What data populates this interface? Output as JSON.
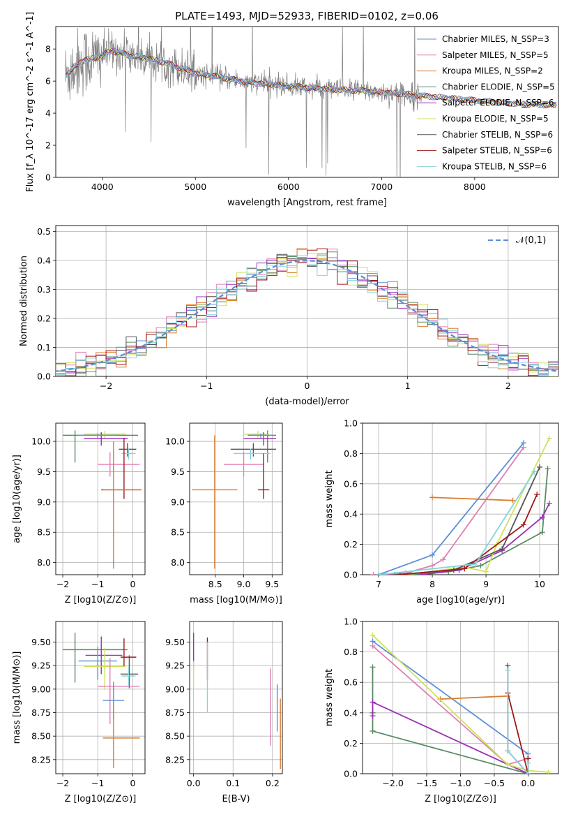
{
  "figure_title": "PLATE=1493, MJD=52933, FIBERID=0102, z=0.06",
  "series_colors": {
    "chabrier_miles": "#5b8fd6",
    "salpeter_miles": "#e07fb5",
    "kroupa_miles": "#dd7d2e",
    "chabrier_elodie": "#5a8a64",
    "salpeter_elodie": "#9a30b8",
    "kroupa_elodie": "#cfe25b",
    "chabrier_stelib": "#555555",
    "salpeter_stelib": "#a01818",
    "kroupa_stelib": "#86d4dc",
    "data": "#808080"
  },
  "chart_data": [
    {
      "id": "spectrum",
      "type": "line",
      "xlabel": "wavelength [Angstrom, rest frame]",
      "ylabel": "Flux [f_λ 10^-17 erg cm^-2 s^-1 A^-1]",
      "xlim": [
        3500,
        8900
      ],
      "ylim": [
        0,
        9.4
      ],
      "xticks": [
        4000,
        5000,
        6000,
        7000,
        8000
      ],
      "yticks": [
        0,
        2,
        4,
        6,
        8
      ],
      "continuum": {
        "x": [
          3600,
          3700,
          3800,
          3900,
          4000,
          4100,
          4300,
          4500,
          4700,
          4850,
          5000,
          5300,
          5600,
          6000,
          6400,
          6800,
          7200,
          7600,
          8000,
          8400,
          8800
        ],
        "y": [
          6.3,
          6.9,
          7.3,
          7.4,
          7.6,
          7.9,
          7.6,
          7.4,
          7.1,
          6.8,
          6.5,
          6.2,
          5.9,
          5.7,
          5.5,
          5.4,
          5.2,
          5.0,
          4.8,
          4.6,
          4.5
        ]
      },
      "legend": [
        {
          "label": "Chabrier MILES, N_SSP=3",
          "color_key": "chabrier_miles"
        },
        {
          "label": "Salpeter MILES, N_SSP=5",
          "color_key": "salpeter_miles"
        },
        {
          "label": "Kroupa MILES, N_SSP=2",
          "color_key": "kroupa_miles"
        },
        {
          "label": "Chabrier ELODIE, N_SSP=5",
          "color_key": "chabrier_elodie"
        },
        {
          "label": "Salpeter ELODIE, N_SSP=6",
          "color_key": "salpeter_elodie"
        },
        {
          "label": "Kroupa ELODIE, N_SSP=5",
          "color_key": "kroupa_elodie"
        },
        {
          "label": "Chabrier STELIB, N_SSP=6",
          "color_key": "chabrier_stelib"
        },
        {
          "label": "Salpeter STELIB, N_SSP=6",
          "color_key": "salpeter_stelib"
        },
        {
          "label": "Kroupa STELIB, N_SSP=6",
          "color_key": "kroupa_stelib"
        }
      ],
      "legend_placement": "upper right",
      "grid": false
    },
    {
      "id": "residuals",
      "type": "line",
      "xlabel": "(data-model)/error",
      "ylabel": "Normed distribution",
      "xlim": [
        -2.5,
        2.5
      ],
      "ylim": [
        0,
        0.52
      ],
      "xticks": [
        -2,
        -1,
        0,
        1,
        2
      ],
      "yticks": [
        0.0,
        0.1,
        0.2,
        0.3,
        0.4,
        0.5
      ],
      "reference_label": "𝒩(0,1)",
      "reference_color": "#5b8fd6",
      "legend_placement": "upper right",
      "grid": true
    },
    {
      "id": "age_vs_z",
      "type": "scatter",
      "xlabel": "Z [log10(Z/Z⊙)]",
      "ylabel": "age  [log10(age/yr)]",
      "xlim": [
        -2.2,
        0.35
      ],
      "ylim": [
        7.8,
        10.3
      ],
      "xticks": [
        -2,
        -1,
        0
      ],
      "yticks": [
        8.0,
        8.5,
        9.0,
        9.5,
        10.0
      ],
      "grid": true,
      "series": [
        {
          "color_key": "chabrier_elodie",
          "x": -1.65,
          "y": 10.1,
          "xerr": [
            0.35,
            1.8
          ],
          "yerr": [
            0.45,
            0.08
          ]
        },
        {
          "color_key": "kroupa_elodie",
          "x": -0.8,
          "y": 10.12,
          "xerr": [
            0.6,
            0.6
          ],
          "yerr": [
            0.08,
            0.05
          ]
        },
        {
          "color_key": "salpeter_elodie",
          "x": -0.9,
          "y": 10.05,
          "xerr": [
            0.5,
            0.75
          ],
          "yerr": [
            0.12,
            0.1
          ]
        },
        {
          "color_key": "chabrier_miles",
          "x": -1.0,
          "y": 10.1,
          "xerr": [
            0.6,
            0.55
          ],
          "yerr": [
            0.05,
            0.03
          ]
        },
        {
          "color_key": "chabrier_stelib",
          "x": -0.15,
          "y": 9.87,
          "xerr": [
            0.25,
            0.25
          ],
          "yerr": [
            0.12,
            0.1
          ]
        },
        {
          "color_key": "kroupa_stelib",
          "x": -0.12,
          "y": 9.8,
          "xerr": [
            0.2,
            0.2
          ],
          "yerr": [
            0.1,
            0.08
          ]
        },
        {
          "color_key": "salpeter_miles",
          "x": -0.65,
          "y": 9.62,
          "xerr": [
            0.35,
            0.85
          ],
          "yerr": [
            0.2,
            0.2
          ]
        },
        {
          "color_key": "salpeter_stelib",
          "x": -0.25,
          "y": 9.2,
          "xerr": [
            0.65,
            0.5
          ],
          "yerr": [
            0.15,
            0.85
          ]
        },
        {
          "color_key": "kroupa_miles",
          "x": -0.55,
          "y": 9.2,
          "xerr": [
            0.3,
            0.8
          ],
          "yerr": [
            1.3,
            0.8
          ]
        }
      ]
    },
    {
      "id": "age_vs_mass",
      "type": "scatter",
      "xlabel": "mass [log10(M/M⊙)]",
      "xlim": [
        8.05,
        9.68
      ],
      "ylim": [
        7.8,
        10.3
      ],
      "xticks": [
        8.5,
        9.0,
        9.5
      ],
      "yticks": [
        8.0,
        8.5,
        9.0,
        9.5,
        10.0
      ],
      "grid": true,
      "series": [
        {
          "color_key": "chabrier_elodie",
          "x": 9.42,
          "y": 10.1,
          "xerr": [
            0.35,
            0.15
          ],
          "yerr": [
            0.45,
            0.08
          ]
        },
        {
          "color_key": "kroupa_elodie",
          "x": 9.25,
          "y": 10.12,
          "xerr": [
            0.25,
            0.2
          ],
          "yerr": [
            0.08,
            0.05
          ]
        },
        {
          "color_key": "salpeter_elodie",
          "x": 9.35,
          "y": 10.05,
          "xerr": [
            0.35,
            0.22
          ],
          "yerr": [
            0.12,
            0.1
          ]
        },
        {
          "color_key": "chabrier_miles",
          "x": 9.3,
          "y": 10.1,
          "xerr": [
            0.2,
            0.2
          ],
          "yerr": [
            0.05,
            0.03
          ]
        },
        {
          "color_key": "chabrier_stelib",
          "x": 9.17,
          "y": 9.87,
          "xerr": [
            0.4,
            0.4
          ],
          "yerr": [
            0.12,
            0.1
          ]
        },
        {
          "color_key": "kroupa_stelib",
          "x": 9.12,
          "y": 9.8,
          "xerr": [
            0.3,
            0.35
          ],
          "yerr": [
            0.1,
            0.08
          ]
        },
        {
          "color_key": "salpeter_miles",
          "x": 9.0,
          "y": 9.62,
          "xerr": [
            0.35,
            0.35
          ],
          "yerr": [
            0.2,
            0.2
          ]
        },
        {
          "color_key": "salpeter_stelib",
          "x": 9.35,
          "y": 9.2,
          "xerr": [
            0.1,
            0.1
          ],
          "yerr": [
            0.15,
            0.6
          ]
        },
        {
          "color_key": "kroupa_miles",
          "x": 8.49,
          "y": 9.2,
          "xerr": [
            0.4,
            0.4
          ],
          "yerr": [
            1.3,
            0.9
          ]
        }
      ]
    },
    {
      "id": "weight_vs_age",
      "type": "line",
      "xlabel": "age  [log10(age/yr)]",
      "ylabel": "mass weight",
      "xlim": [
        6.7,
        10.35
      ],
      "ylim": [
        0,
        1.0
      ],
      "xticks": [
        7,
        8,
        9,
        10
      ],
      "yticks": [
        0.0,
        0.2,
        0.4,
        0.6,
        0.8,
        1.0
      ],
      "grid": true,
      "series": [
        {
          "color_key": "chabrier_miles",
          "x": [
            7.0,
            8.0,
            9.7
          ],
          "y": [
            0.0,
            0.13,
            0.87
          ]
        },
        {
          "color_key": "salpeter_miles",
          "x": [
            6.9,
            7.5,
            8.0,
            8.2,
            9.7
          ],
          "y": [
            0.0,
            0.01,
            0.06,
            0.1,
            0.84
          ]
        },
        {
          "color_key": "kroupa_miles",
          "x": [
            8.0,
            9.5
          ],
          "y": [
            0.51,
            0.49
          ]
        },
        {
          "color_key": "chabrier_elodie",
          "x": [
            7.6,
            8.3,
            8.9,
            10.05,
            10.15
          ],
          "y": [
            0.0,
            0.02,
            0.06,
            0.28,
            0.7
          ]
        },
        {
          "color_key": "salpeter_elodie",
          "x": [
            7.8,
            8.5,
            9.3,
            10.05,
            10.18
          ],
          "y": [
            0.0,
            0.03,
            0.16,
            0.38,
            0.47
          ]
        },
        {
          "color_key": "kroupa_elodie",
          "x": [
            7.5,
            8.6,
            9.0,
            9.2,
            10.18
          ],
          "y": [
            0.0,
            0.05,
            0.02,
            0.2,
            0.9
          ]
        },
        {
          "color_key": "chabrier_stelib",
          "x": [
            7.3,
            8.4,
            9.3,
            10.0
          ],
          "y": [
            0.0,
            0.03,
            0.17,
            0.71
          ]
        },
        {
          "color_key": "salpeter_stelib",
          "x": [
            7.4,
            8.6,
            9.7,
            9.95
          ],
          "y": [
            0.0,
            0.04,
            0.33,
            0.53
          ]
        },
        {
          "color_key": "kroupa_stelib",
          "x": [
            7.0,
            8.8,
            9.9
          ],
          "y": [
            0.0,
            0.07,
            0.68
          ]
        }
      ]
    },
    {
      "id": "mass_vs_z",
      "type": "scatter",
      "xlabel": "Z [log10(Z/Z⊙)]",
      "ylabel": "mass [log10(M/M⊙)]",
      "xlim": [
        -2.2,
        0.35
      ],
      "ylim": [
        8.1,
        9.72
      ],
      "xticks": [
        -2,
        -1,
        0
      ],
      "yticks": [
        8.25,
        8.5,
        8.75,
        9.0,
        9.25,
        9.5
      ],
      "grid": true,
      "series": [
        {
          "color_key": "chabrier_elodie",
          "x": -1.65,
          "y": 9.42,
          "xerr": [
            0.35,
            1.5
          ],
          "yerr": [
            0.35,
            0.18
          ]
        },
        {
          "color_key": "salpeter_elodie",
          "x": -0.9,
          "y": 9.36,
          "xerr": [
            0.45,
            0.6
          ],
          "yerr": [
            0.2,
            0.2
          ]
        },
        {
          "color_key": "chabrier_miles",
          "x": -1.0,
          "y": 9.3,
          "xerr": [
            0.55,
            0.55
          ],
          "yerr": [
            0.2,
            0.15
          ]
        },
        {
          "color_key": "salpeter_stelib",
          "x": -0.25,
          "y": 9.34,
          "xerr": [
            0.1,
            0.35
          ],
          "yerr": [
            0.1,
            0.2
          ]
        },
        {
          "color_key": "kroupa_elodie",
          "x": -0.8,
          "y": 9.24,
          "xerr": [
            0.6,
            0.6
          ],
          "yerr": [
            0.25,
            0.2
          ]
        },
        {
          "color_key": "chabrier_stelib",
          "x": -0.1,
          "y": 9.16,
          "xerr": [
            0.25,
            0.25
          ],
          "yerr": [
            0.15,
            0.2
          ]
        },
        {
          "color_key": "kroupa_stelib",
          "x": -0.12,
          "y": 9.14,
          "xerr": [
            0.2,
            0.2
          ],
          "yerr": [
            0.1,
            0.1
          ]
        },
        {
          "color_key": "salpeter_miles",
          "x": -0.65,
          "y": 9.03,
          "xerr": [
            0.35,
            0.85
          ],
          "yerr": [
            0.4,
            0.3
          ]
        },
        {
          "color_key": "chabrier_miles",
          "x": -0.55,
          "y": 8.88,
          "xerr": [
            0.3,
            0.3
          ],
          "yerr": [
            0.2,
            0.2
          ]
        },
        {
          "color_key": "kroupa_miles",
          "x": -0.55,
          "y": 8.48,
          "xerr": [
            0.3,
            0.75
          ],
          "yerr": [
            0.32,
            0.4
          ]
        }
      ]
    },
    {
      "id": "mass_vs_ebv",
      "type": "scatter",
      "xlabel": "E(B-V)",
      "xlim": [
        -0.01,
        0.225
      ],
      "ylim": [
        8.1,
        9.72
      ],
      "xticks": [
        0.0,
        0.1,
        0.2
      ],
      "yticks": [
        8.25,
        8.5,
        8.75,
        9.0,
        9.25,
        9.5
      ],
      "grid": true,
      "series": [
        {
          "color_key": "salpeter_elodie",
          "x": 0.0,
          "y": 9.4,
          "yerr": [
            0.2,
            0.2
          ]
        },
        {
          "color_key": "kroupa_elodie",
          "x": 0.0,
          "y": 9.2,
          "yerr": [
            0.2,
            0.1
          ]
        },
        {
          "color_key": "salpeter_stelib",
          "x": 0.035,
          "y": 9.3,
          "yerr": [
            0.2,
            0.25
          ]
        },
        {
          "color_key": "kroupa_stelib",
          "x": 0.035,
          "y": 9.1,
          "yerr": [
            0.35,
            0.4
          ]
        },
        {
          "color_key": "salpeter_miles",
          "x": 0.195,
          "y": 8.8,
          "yerr": [
            0.4,
            0.42
          ]
        },
        {
          "color_key": "chabrier_miles",
          "x": 0.212,
          "y": 8.75,
          "yerr": [
            0.2,
            0.3
          ]
        },
        {
          "color_key": "kroupa_miles",
          "x": 0.22,
          "y": 8.5,
          "yerr": [
            0.35,
            0.4
          ]
        }
      ]
    },
    {
      "id": "weight_vs_z",
      "type": "line",
      "xlabel": "Z [log10(Z/Z⊙)]",
      "ylabel": "mass weight",
      "xlim": [
        -2.45,
        0.45
      ],
      "ylim": [
        0,
        1.0
      ],
      "xticks": [
        -2.0,
        -1.5,
        -1.0,
        -0.5,
        0.0
      ],
      "yticks": [
        0.0,
        0.2,
        0.4,
        0.6,
        0.8,
        1.0
      ],
      "grid": true,
      "series": [
        {
          "color_key": "chabrier_miles",
          "x": [
            -2.3,
            0.0
          ],
          "y": [
            0.87,
            0.13
          ]
        },
        {
          "color_key": "salpeter_miles",
          "x": [
            -2.3,
            -0.3,
            0.0
          ],
          "y": [
            0.84,
            0.06,
            0.1
          ]
        },
        {
          "color_key": "kroupa_miles",
          "x": [
            -1.3,
            -0.3
          ],
          "y": [
            0.49,
            0.51
          ]
        },
        {
          "color_key": "chabrier_elodie",
          "x": [
            -2.3,
            -2.3,
            -2.3,
            0.0,
            0.0
          ],
          "y": [
            0.7,
            0.4,
            0.28,
            0.0,
            0.02
          ]
        },
        {
          "color_key": "salpeter_elodie",
          "x": [
            -2.3,
            -2.3,
            0.0,
            0.0
          ],
          "y": [
            0.38,
            0.47,
            0.0,
            0.1
          ]
        },
        {
          "color_key": "kroupa_elodie",
          "x": [
            -2.3,
            -0.3,
            0.0,
            0.3
          ],
          "y": [
            0.91,
            0.06,
            0.02,
            0.01
          ]
        },
        {
          "color_key": "chabrier_stelib",
          "x": [
            -0.3,
            -0.3,
            0.0,
            0.0
          ],
          "y": [
            0.71,
            0.15,
            0.0,
            0.1
          ]
        },
        {
          "color_key": "salpeter_stelib",
          "x": [
            -0.3,
            0.0,
            0.0
          ],
          "y": [
            0.53,
            0.0,
            0.1
          ]
        },
        {
          "color_key": "kroupa_stelib",
          "x": [
            -0.3,
            -0.3,
            0.0,
            0.0
          ],
          "y": [
            0.68,
            0.15,
            0.0,
            0.07
          ]
        }
      ]
    }
  ]
}
